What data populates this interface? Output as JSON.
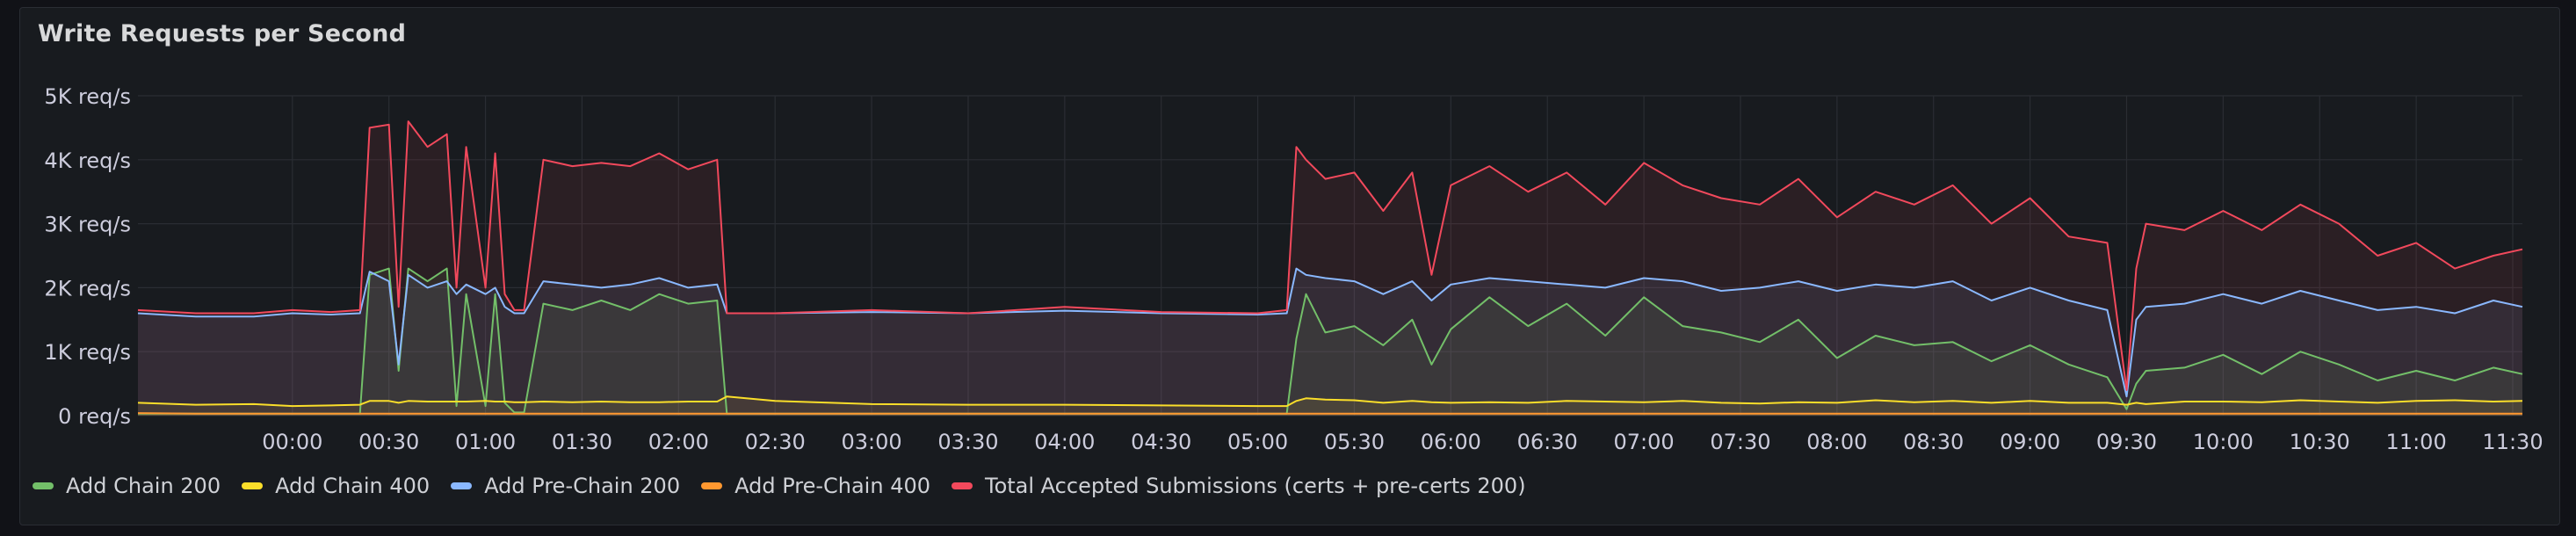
{
  "panel": {
    "title": "Write Requests per Second"
  },
  "colors": {
    "background": "#181b1f",
    "grid": "#2a2d33",
    "axis_text": "#ccccdc"
  },
  "chart_data": {
    "type": "area",
    "title": "Write Requests per Second",
    "xlabel": "",
    "ylabel": "",
    "unit": "req/s",
    "x_range_hours": [
      -0.8,
      11.55
    ],
    "ylim": [
      0,
      5000
    ],
    "y_ticks": [
      0,
      1000,
      2000,
      3000,
      4000,
      5000
    ],
    "y_tick_labels": [
      "0 req/s",
      "1K req/s",
      "2K req/s",
      "3K req/s",
      "4K req/s",
      "5K req/s"
    ],
    "x_ticks": [
      0,
      0.5,
      1,
      1.5,
      2,
      2.5,
      3,
      3.5,
      4,
      4.5,
      5,
      5.5,
      6,
      6.5,
      7,
      7.5,
      8,
      8.5,
      9,
      9.5,
      10,
      10.5,
      11,
      11.5
    ],
    "x_tick_labels": [
      "00:00",
      "00:30",
      "01:00",
      "01:30",
      "02:00",
      "02:30",
      "03:00",
      "03:30",
      "04:00",
      "04:30",
      "05:00",
      "05:30",
      "06:00",
      "06:30",
      "07:00",
      "07:30",
      "08:00",
      "08:30",
      "09:00",
      "09:30",
      "10:00",
      "10:30",
      "11:00",
      "11:30"
    ],
    "grid": true,
    "legend": "bottom-left",
    "x_hours": [
      -0.8,
      -0.5,
      -0.2,
      0.0,
      0.2,
      0.35,
      0.4,
      0.5,
      0.55,
      0.6,
      0.7,
      0.8,
      0.85,
      0.9,
      1.0,
      1.05,
      1.1,
      1.15,
      1.2,
      1.3,
      1.45,
      1.6,
      1.75,
      1.9,
      2.05,
      2.2,
      2.25,
      2.5,
      3.0,
      3.5,
      4.0,
      4.5,
      5.0,
      5.15,
      5.2,
      5.25,
      5.35,
      5.5,
      5.65,
      5.8,
      5.9,
      6.0,
      6.2,
      6.4,
      6.6,
      6.8,
      7.0,
      7.2,
      7.4,
      7.6,
      7.8,
      8.0,
      8.2,
      8.4,
      8.6,
      8.8,
      9.0,
      9.2,
      9.4,
      9.5,
      9.55,
      9.6,
      9.8,
      10.0,
      10.2,
      10.4,
      10.6,
      10.8,
      11.0,
      11.2,
      11.4,
      11.55
    ],
    "series": [
      {
        "name": "Add Chain 200",
        "color": "#73bf69",
        "values": [
          30,
          30,
          30,
          30,
          30,
          30,
          2200,
          2300,
          700,
          2300,
          2100,
          2300,
          150,
          1900,
          150,
          1900,
          200,
          50,
          50,
          1750,
          1650,
          1800,
          1650,
          1900,
          1750,
          1800,
          30,
          30,
          30,
          30,
          30,
          30,
          30,
          30,
          1200,
          1900,
          1300,
          1400,
          1100,
          1500,
          800,
          1350,
          1850,
          1400,
          1750,
          1250,
          1850,
          1400,
          1300,
          1150,
          1500,
          900,
          1250,
          1100,
          1150,
          850,
          1100,
          800,
          600,
          100,
          500,
          700,
          750,
          950,
          650,
          1000,
          800,
          550,
          700,
          550,
          750,
          650
        ]
      },
      {
        "name": "Add Chain 400",
        "color": "#fade2a",
        "values": [
          200,
          170,
          180,
          150,
          160,
          170,
          230,
          230,
          200,
          230,
          220,
          220,
          220,
          220,
          230,
          220,
          220,
          210,
          210,
          220,
          210,
          220,
          210,
          210,
          220,
          220,
          300,
          230,
          180,
          170,
          170,
          160,
          150,
          150,
          230,
          270,
          250,
          240,
          200,
          230,
          210,
          200,
          210,
          200,
          230,
          220,
          210,
          230,
          200,
          190,
          210,
          200,
          240,
          210,
          230,
          200,
          230,
          200,
          200,
          170,
          200,
          180,
          220,
          220,
          210,
          240,
          220,
          200,
          230,
          240,
          220,
          230
        ]
      },
      {
        "name": "Add Pre-Chain 200",
        "color": "#8ab8ff",
        "values": [
          1600,
          1550,
          1550,
          1600,
          1580,
          1600,
          2250,
          2100,
          800,
          2200,
          2000,
          2100,
          1900,
          2050,
          1900,
          2000,
          1700,
          1600,
          1600,
          2100,
          2050,
          2000,
          2050,
          2150,
          2000,
          2050,
          1600,
          1600,
          1620,
          1600,
          1640,
          1600,
          1580,
          1600,
          2300,
          2200,
          2150,
          2100,
          1900,
          2100,
          1800,
          2050,
          2150,
          2100,
          2050,
          2000,
          2150,
          2100,
          1950,
          2000,
          2100,
          1950,
          2050,
          2000,
          2100,
          1800,
          2000,
          1800,
          1650,
          300,
          1500,
          1700,
          1750,
          1900,
          1750,
          1950,
          1800,
          1650,
          1700,
          1600,
          1800,
          1700
        ]
      },
      {
        "name": "Add Pre-Chain 400",
        "color": "#ff9830",
        "values": [
          40,
          30,
          30,
          30,
          30,
          30,
          30,
          30,
          30,
          30,
          30,
          30,
          30,
          30,
          30,
          30,
          30,
          30,
          30,
          30,
          30,
          30,
          30,
          30,
          30,
          30,
          30,
          30,
          30,
          30,
          30,
          30,
          30,
          30,
          30,
          30,
          30,
          30,
          30,
          30,
          30,
          30,
          30,
          30,
          30,
          30,
          30,
          30,
          30,
          30,
          30,
          30,
          30,
          30,
          30,
          30,
          30,
          30,
          30,
          30,
          30,
          30,
          30,
          30,
          30,
          30,
          30,
          30,
          30,
          30,
          30,
          30
        ]
      },
      {
        "name": "Total Accepted Submissions (certs + pre-certs 200)",
        "color": "#f2495c",
        "values": [
          1650,
          1600,
          1600,
          1650,
          1620,
          1650,
          4500,
          4550,
          1700,
          4600,
          4200,
          4400,
          2000,
          4200,
          2000,
          4100,
          1900,
          1650,
          1650,
          4000,
          3900,
          3950,
          3900,
          4100,
          3850,
          4000,
          1600,
          1600,
          1650,
          1600,
          1700,
          1620,
          1600,
          1650,
          4200,
          4000,
          3700,
          3800,
          3200,
          3800,
          2200,
          3600,
          3900,
          3500,
          3800,
          3300,
          3950,
          3600,
          3400,
          3300,
          3700,
          3100,
          3500,
          3300,
          3600,
          3000,
          3400,
          2800,
          2700,
          400,
          2300,
          3000,
          2900,
          3200,
          2900,
          3300,
          3000,
          2500,
          2700,
          2300,
          2500,
          2600
        ]
      }
    ]
  }
}
